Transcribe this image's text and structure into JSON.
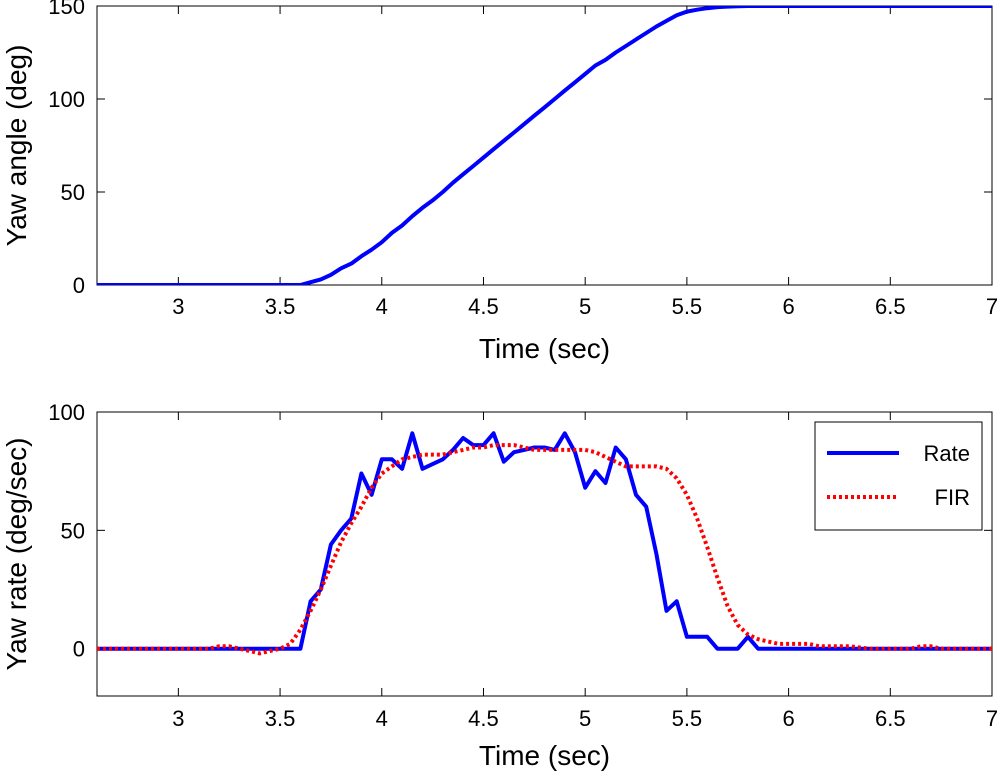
{
  "chart_data": [
    {
      "type": "line",
      "xlabel": "Time (sec)",
      "ylabel": "Yaw angle (deg)",
      "xlim": [
        2.6,
        7
      ],
      "ylim": [
        0,
        150
      ],
      "xticks": [
        3,
        3.5,
        4,
        4.5,
        5,
        5.5,
        6,
        6.5,
        7
      ],
      "xtick_labels": [
        "3",
        "3.5",
        "4",
        "4.5",
        "5",
        "5.5",
        "6",
        "6.5",
        "7"
      ],
      "yticks": [
        0,
        50,
        100,
        150
      ],
      "ytick_labels": [
        "0",
        "50",
        "100",
        "150"
      ],
      "grid": false,
      "series": [
        {
          "color": "#0000ff",
          "style": "solid",
          "x": [
            2.6,
            3.5,
            3.55,
            3.6,
            3.65,
            3.7,
            3.75,
            3.8,
            3.85,
            3.9,
            3.95,
            4.0,
            4.05,
            4.1,
            4.15,
            4.2,
            4.25,
            4.3,
            4.35,
            4.4,
            4.45,
            4.5,
            4.55,
            4.6,
            4.65,
            4.7,
            4.75,
            4.8,
            4.85,
            4.9,
            4.95,
            5.0,
            5.05,
            5.1,
            5.15,
            5.2,
            5.25,
            5.3,
            5.35,
            5.4,
            5.45,
            5.5,
            5.55,
            5.6,
            5.65,
            5.7,
            5.75,
            5.8,
            5.85,
            7.0
          ],
          "values": [
            0,
            0,
            0,
            0,
            1.5,
            3,
            5.5,
            9,
            11.5,
            15.5,
            19,
            23,
            28,
            32,
            37,
            41.5,
            45.5,
            50,
            55,
            59.5,
            64,
            68.5,
            73,
            77.5,
            82,
            86.5,
            91,
            95.5,
            100,
            104.5,
            109,
            113.5,
            118,
            121,
            125,
            128.5,
            132,
            135.5,
            139,
            142,
            145,
            147,
            148,
            148.8,
            149.4,
            149.7,
            149.9,
            150,
            150,
            150
          ]
        }
      ]
    },
    {
      "type": "line",
      "xlabel": "Time (sec)",
      "ylabel": "Yaw rate (deg/sec)",
      "xlim": [
        2.6,
        7
      ],
      "ylim": [
        -20,
        100
      ],
      "xticks": [
        3,
        3.5,
        4,
        4.5,
        5,
        5.5,
        6,
        6.5,
        7
      ],
      "xtick_labels": [
        "3",
        "3.5",
        "4",
        "4.5",
        "5",
        "5.5",
        "6",
        "6.5",
        "7"
      ],
      "yticks": [
        0,
        50,
        100
      ],
      "ytick_labels": [
        "0",
        "50",
        "100"
      ],
      "grid": false,
      "legend_position": "top-right",
      "series": [
        {
          "name": "Rate",
          "color": "#0000ff",
          "style": "solid",
          "x": [
            2.6,
            3.55,
            3.6,
            3.65,
            3.7,
            3.75,
            3.8,
            3.85,
            3.9,
            3.95,
            4.0,
            4.05,
            4.1,
            4.15,
            4.2,
            4.25,
            4.3,
            4.35,
            4.4,
            4.45,
            4.5,
            4.55,
            4.6,
            4.65,
            4.7,
            4.75,
            4.8,
            4.85,
            4.9,
            4.95,
            5.0,
            5.05,
            5.1,
            5.15,
            5.2,
            5.25,
            5.3,
            5.35,
            5.4,
            5.45,
            5.5,
            5.55,
            5.6,
            5.65,
            5.7,
            5.75,
            5.8,
            5.85,
            5.9,
            5.95,
            6.0,
            6.05,
            6.1,
            6.15,
            6.2,
            6.25,
            7.0
          ],
          "values": [
            0,
            0,
            0,
            20,
            25,
            44,
            50,
            55,
            74,
            65,
            80,
            80,
            76,
            91,
            76,
            78,
            80,
            84,
            89,
            86,
            86,
            91,
            79,
            83,
            84,
            85,
            85,
            84,
            91,
            83,
            68,
            75,
            70,
            85,
            80,
            65,
            60,
            40,
            16,
            20,
            5,
            5,
            5,
            0,
            0,
            0,
            5,
            0,
            0,
            0,
            0,
            0,
            0,
            0,
            0,
            0,
            0
          ]
        },
        {
          "name": "FIR",
          "color": "#ff0000",
          "style": "dotted",
          "x": [
            2.6,
            3.15,
            3.2,
            3.25,
            3.3,
            3.35,
            3.4,
            3.45,
            3.5,
            3.55,
            3.6,
            3.65,
            3.7,
            3.75,
            3.8,
            3.85,
            3.9,
            3.95,
            4.0,
            4.05,
            4.1,
            4.15,
            4.2,
            4.25,
            4.3,
            4.35,
            4.4,
            4.45,
            4.5,
            4.55,
            4.6,
            4.65,
            4.7,
            4.75,
            4.8,
            4.85,
            4.9,
            4.95,
            5.0,
            5.05,
            5.1,
            5.15,
            5.2,
            5.25,
            5.3,
            5.35,
            5.4,
            5.45,
            5.5,
            5.55,
            5.6,
            5.65,
            5.7,
            5.75,
            5.8,
            5.85,
            5.9,
            5.95,
            6.0,
            6.05,
            6.1,
            6.15,
            6.2,
            6.3,
            6.4,
            6.5,
            6.6,
            6.65,
            6.7,
            6.75,
            6.8,
            7.0
          ],
          "values": [
            0,
            0,
            1,
            1,
            0,
            -1,
            -2,
            -1,
            0,
            2,
            8,
            16,
            25,
            35,
            45,
            53,
            60,
            68,
            74,
            77,
            80,
            81,
            82,
            82,
            82,
            83,
            84,
            85,
            85,
            86,
            86,
            86,
            85,
            84,
            84,
            84,
            84,
            84,
            84,
            83,
            81,
            79,
            77,
            77,
            77,
            77,
            76,
            72,
            65,
            55,
            43,
            30,
            18,
            10,
            6,
            4,
            3,
            2,
            2,
            2,
            2,
            1,
            1,
            1,
            0,
            0,
            0,
            1,
            1,
            0,
            0,
            0
          ]
        }
      ]
    }
  ]
}
